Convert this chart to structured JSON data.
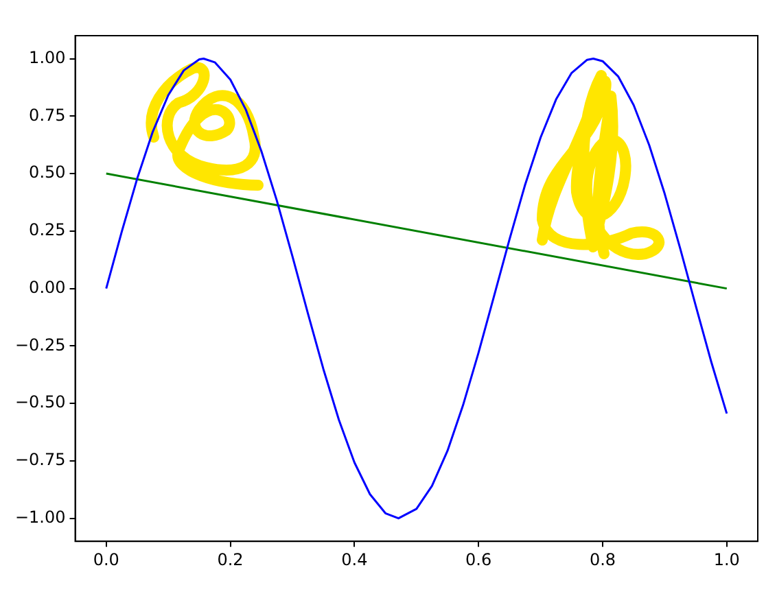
{
  "chart_data": {
    "type": "line",
    "series": [
      {
        "color": "#0000ff",
        "x": [
          0,
          0.025,
          0.05,
          0.075,
          0.1,
          0.125,
          0.15,
          0.157,
          0.175,
          0.2,
          0.225,
          0.25,
          0.275,
          0.3,
          0.325,
          0.35,
          0.375,
          0.4,
          0.425,
          0.45,
          0.471,
          0.5,
          0.525,
          0.55,
          0.575,
          0.6,
          0.625,
          0.65,
          0.675,
          0.7,
          0.725,
          0.75,
          0.775,
          0.785,
          0.8,
          0.825,
          0.85,
          0.875,
          0.9,
          0.925,
          0.95,
          0.975,
          1
        ],
        "values": [
          0,
          0.247,
          0.479,
          0.682,
          0.841,
          0.949,
          0.997,
          1.0,
          0.984,
          0.909,
          0.778,
          0.598,
          0.382,
          0.141,
          -0.108,
          -0.351,
          -0.572,
          -0.757,
          -0.895,
          -0.978,
          -1.0,
          -0.959,
          -0.859,
          -0.706,
          -0.508,
          -0.279,
          -0.033,
          0.215,
          0.451,
          0.657,
          0.823,
          0.938,
          0.995,
          1.0,
          0.989,
          0.923,
          0.798,
          0.624,
          0.412,
          0.174,
          -0.075,
          -0.319,
          -0.544
        ]
      },
      {
        "color": "#008000",
        "x": [
          0,
          1
        ],
        "values": [
          0.5,
          0
        ]
      }
    ],
    "xlim": [
      -0.05,
      1.05
    ],
    "xticks": [
      {
        "value": 0,
        "label": "0.0"
      },
      {
        "value": 0.2,
        "label": "0.2"
      },
      {
        "value": 0.4,
        "label": "0.4"
      },
      {
        "value": 0.6,
        "label": "0.6"
      },
      {
        "value": 0.8,
        "label": "0.8"
      },
      {
        "value": 1,
        "label": "1.0"
      }
    ],
    "ylim": [
      -1.1,
      1.1
    ],
    "yticks": [
      {
        "value": -1,
        "label": "−1.00"
      },
      {
        "value": -0.75,
        "label": "−0.75"
      },
      {
        "value": -0.5,
        "label": "−0.50"
      },
      {
        "value": -0.25,
        "label": "−0.25"
      },
      {
        "value": 0,
        "label": "0.00"
      },
      {
        "value": 0.25,
        "label": "0.25"
      },
      {
        "value": 0.5,
        "label": "0.50"
      },
      {
        "value": 0.75,
        "label": "0.75"
      },
      {
        "value": 1,
        "label": "1.00"
      }
    ],
    "grid": false,
    "legend": false,
    "marker": "none",
    "line_style": "solid"
  }
}
